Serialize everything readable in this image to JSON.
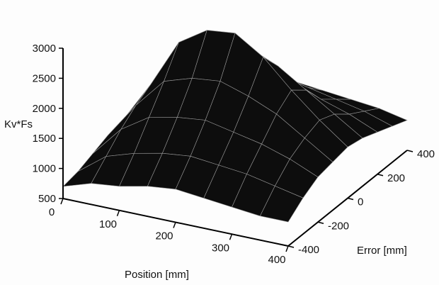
{
  "chart_data": {
    "type": "surface",
    "title": "",
    "xlabel": "Position [mm]",
    "ylabel": "Error [mm]",
    "zlabel": "Kv*Fs",
    "xlim": [
      0,
      400
    ],
    "ylim": [
      -400,
      400
    ],
    "zlim": [
      500,
      3000
    ],
    "x_ticks": [
      "0",
      "100",
      "200",
      "300",
      "400"
    ],
    "y_ticks": [
      "-400",
      "-200",
      "0",
      "200",
      "400"
    ],
    "z_ticks": [
      "500",
      "1000",
      "1500",
      "2000",
      "2500",
      "3000"
    ],
    "x": [
      0,
      50,
      100,
      150,
      200,
      250,
      300,
      350,
      400
    ],
    "y": [
      -400,
      -300,
      -200,
      -100,
      0,
      100,
      200,
      300,
      400
    ],
    "z": [
      [
        700,
        850,
        900,
        1000,
        1050,
        1000,
        950,
        900,
        900
      ],
      [
        750,
        1100,
        1250,
        1350,
        1400,
        1350,
        1300,
        1200,
        1100
      ],
      [
        850,
        1350,
        1650,
        1750,
        1800,
        1700,
        1600,
        1450,
        1250
      ],
      [
        950,
        1550,
        2050,
        2200,
        2250,
        2100,
        1900,
        1600,
        1300
      ],
      [
        1000,
        1700,
        2500,
        2800,
        2850,
        2550,
        2100,
        1700,
        1350
      ],
      [
        950,
        1550,
        2000,
        2300,
        2400,
        2200,
        1900,
        1600,
        1300
      ],
      [
        900,
        1400,
        1700,
        1800,
        1900,
        1750,
        1550,
        1400,
        1200
      ],
      [
        850,
        1200,
        1400,
        1500,
        1550,
        1450,
        1350,
        1250,
        1100
      ],
      [
        800,
        1050,
        1150,
        1200,
        1250,
        1200,
        1150,
        1100,
        1000
      ]
    ],
    "colors": {
      "surface_fill": "#0d0d0d",
      "mesh_line": "#9a9a9a",
      "axis": "#000000"
    }
  }
}
